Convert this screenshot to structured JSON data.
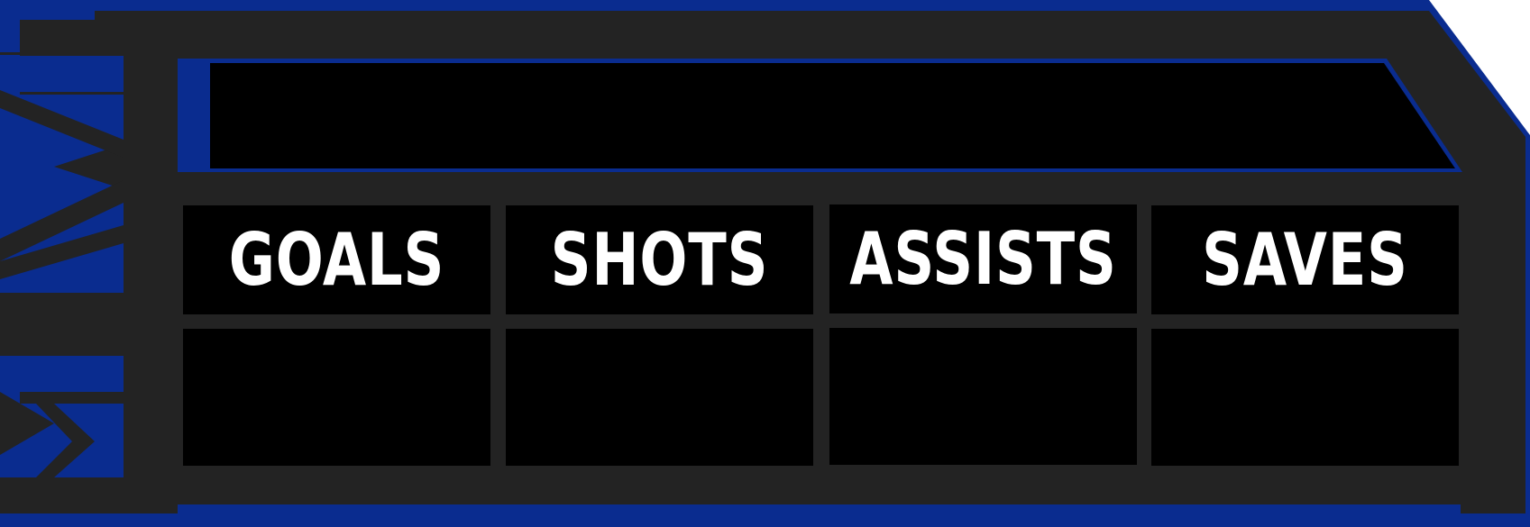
{
  "logo": {
    "text": "MNM",
    "color_accent": "#0a2c8f",
    "color_dark": "#232323"
  },
  "title_bar": {
    "text": ""
  },
  "stats": [
    {
      "label": "GOALS",
      "value": ""
    },
    {
      "label": "SHOTS",
      "value": ""
    },
    {
      "label": "ASSISTS",
      "value": ""
    },
    {
      "label": "SAVES",
      "value": ""
    }
  ],
  "colors": {
    "border_blue": "#0a2c8f",
    "frame": "#232323",
    "cell": "#000000",
    "label": "#ffffff"
  }
}
